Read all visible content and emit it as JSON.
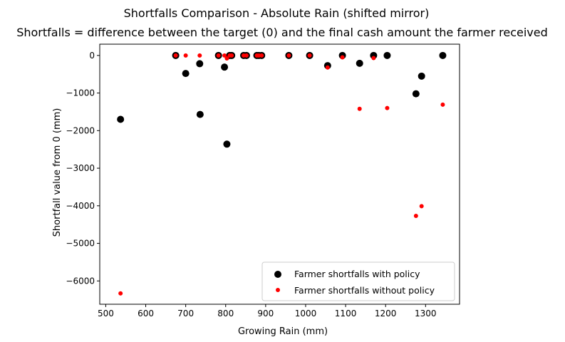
{
  "chart_data": {
    "type": "scatter",
    "suptitle": "Shortfalls Comparison - Absolute Rain (shifted mirror)",
    "title": "Shortfalls = difference between the target (0) and the final cash amount the farmer received",
    "xlabel": "Growing Rain (mm)",
    "ylabel": "Shortfall value from 0 (mm)",
    "xlim": [
      485,
      1385
    ],
    "ylim": [
      -6620,
      300
    ],
    "xticks": [
      500,
      600,
      700,
      800,
      900,
      1000,
      1100,
      1200,
      1300
    ],
    "yticks": [
      0,
      -1000,
      -2000,
      -3000,
      -4000,
      -5000,
      -6000
    ],
    "grid": false,
    "legend_position": "lower right",
    "series": [
      {
        "name": "Farmer shortfalls with policy",
        "color": "#000000",
        "marker_size": "large",
        "points": [
          {
            "x": 537,
            "y": -1700
          },
          {
            "x": 675,
            "y": 0
          },
          {
            "x": 700,
            "y": -480
          },
          {
            "x": 735,
            "y": -220
          },
          {
            "x": 736,
            "y": -1570
          },
          {
            "x": 782,
            "y": 0
          },
          {
            "x": 797,
            "y": -310
          },
          {
            "x": 803,
            "y": -2360
          },
          {
            "x": 810,
            "y": 0
          },
          {
            "x": 815,
            "y": 0
          },
          {
            "x": 845,
            "y": 0
          },
          {
            "x": 852,
            "y": 0
          },
          {
            "x": 878,
            "y": 0
          },
          {
            "x": 883,
            "y": 0
          },
          {
            "x": 890,
            "y": 0
          },
          {
            "x": 958,
            "y": 0
          },
          {
            "x": 1010,
            "y": 0
          },
          {
            "x": 1055,
            "y": -270
          },
          {
            "x": 1092,
            "y": 0
          },
          {
            "x": 1135,
            "y": -210
          },
          {
            "x": 1170,
            "y": 0
          },
          {
            "x": 1204,
            "y": 0
          },
          {
            "x": 1276,
            "y": -1020
          },
          {
            "x": 1290,
            "y": -550
          },
          {
            "x": 1343,
            "y": 0
          }
        ]
      },
      {
        "name": "Farmer shortfalls without policy",
        "color": "#ff0000",
        "marker_size": "small",
        "points": [
          {
            "x": 537,
            "y": -6330
          },
          {
            "x": 675,
            "y": 0
          },
          {
            "x": 700,
            "y": 0
          },
          {
            "x": 735,
            "y": 0
          },
          {
            "x": 782,
            "y": 0
          },
          {
            "x": 797,
            "y": 0
          },
          {
            "x": 803,
            "y": -80
          },
          {
            "x": 810,
            "y": 0
          },
          {
            "x": 815,
            "y": 0
          },
          {
            "x": 845,
            "y": 0
          },
          {
            "x": 852,
            "y": 0
          },
          {
            "x": 878,
            "y": 0
          },
          {
            "x": 883,
            "y": 0
          },
          {
            "x": 890,
            "y": 0
          },
          {
            "x": 958,
            "y": 0
          },
          {
            "x": 1010,
            "y": 0
          },
          {
            "x": 1055,
            "y": -320
          },
          {
            "x": 1092,
            "y": -50
          },
          {
            "x": 1135,
            "y": -1420
          },
          {
            "x": 1170,
            "y": -70
          },
          {
            "x": 1204,
            "y": -1400
          },
          {
            "x": 1276,
            "y": -4270
          },
          {
            "x": 1290,
            "y": -4010
          },
          {
            "x": 1343,
            "y": -1310
          }
        ]
      }
    ]
  }
}
